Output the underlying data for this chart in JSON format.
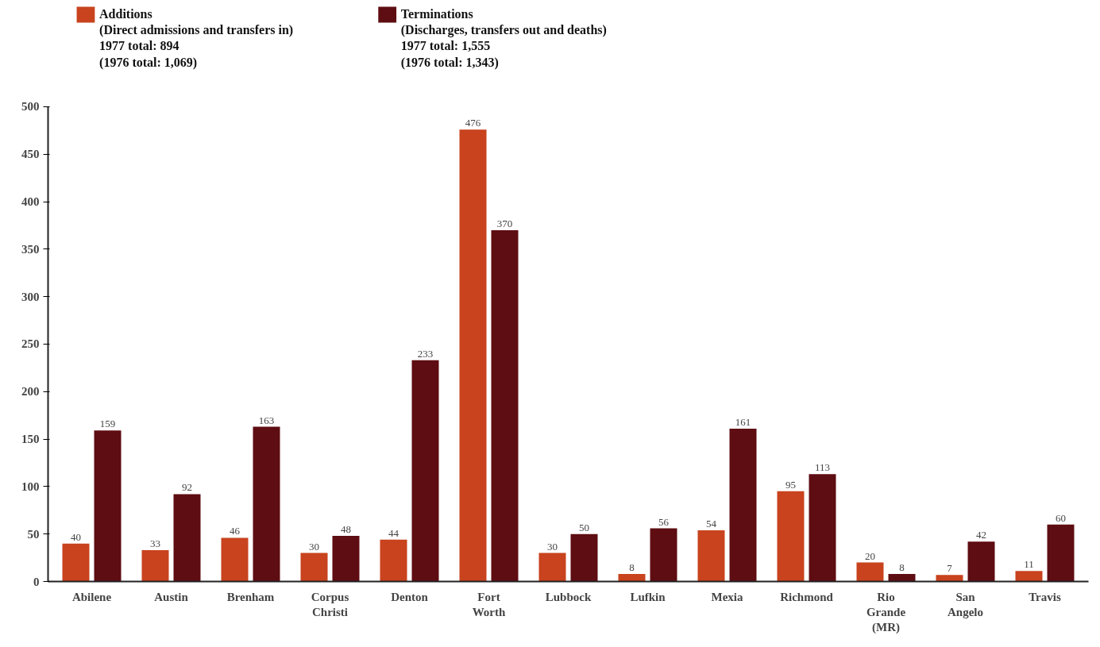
{
  "chart_data": {
    "type": "bar",
    "categories": [
      "Abilene",
      "Austin",
      "Brenham",
      "Corpus\nChristi",
      "Denton",
      "Fort\nWorth",
      "Lubbock",
      "Lufkin",
      "Mexia",
      "Richmond",
      "Rio\nGrande\n(MR)",
      "San\nAngelo",
      "Travis"
    ],
    "series": [
      {
        "name": "Additions\n(Direct admissions and transfers in)\n1977 total: 894\n(1976 total: 1,069)",
        "color": "#c8431e",
        "values": [
          40,
          33,
          46,
          30,
          44,
          476,
          30,
          8,
          54,
          95,
          20,
          7,
          11
        ]
      },
      {
        "name": "Terminations\n(Discharges, transfers out and deaths)\n1977 total: 1,555\n(1976 total: 1,343)",
        "color": "#5e0d12",
        "values": [
          159,
          92,
          163,
          48,
          233,
          370,
          50,
          56,
          161,
          113,
          8,
          42,
          60
        ]
      }
    ],
    "ylim": [
      0,
      500
    ],
    "yticks": [
      0,
      50,
      100,
      150,
      200,
      250,
      300,
      350,
      400,
      450,
      500
    ],
    "data_labels": true,
    "grid": false,
    "legend": "top left"
  }
}
